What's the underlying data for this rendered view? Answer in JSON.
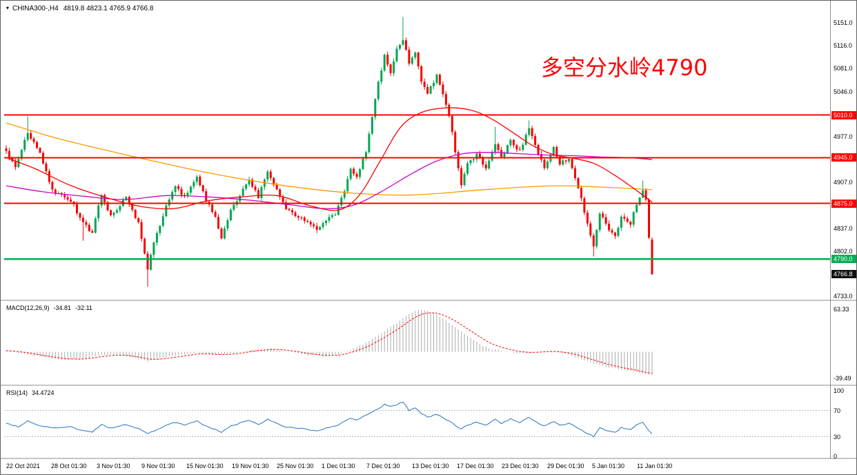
{
  "window": {
    "collapse_icon": "▾",
    "symbol_timeframe": "CHINA300-,H4",
    "ohlc_text": "4819.8 4823.1 4765.9 4766.8"
  },
  "annotation": {
    "text": "多空分水岭4790",
    "color": "#FF0000"
  },
  "colors": {
    "candle_up": "#00A651",
    "candle_down": "#F40000",
    "macd_hist": "#AAAAAA",
    "macd_signal": "#FF0000",
    "rsi_line": "#2273C4",
    "rsi_level": "#B8B8B8",
    "separator": "#8C8C8C",
    "current_badge": "#101010",
    "scale_text": "#000000"
  },
  "chart_data": {
    "type": "candlestick",
    "symbol": "CHINA300-",
    "timeframe": "H4",
    "title": "CHINA300-,H4",
    "last_ohlc": {
      "open": 4819.8,
      "high": 4823.1,
      "low": 4765.9,
      "close": 4766.8
    },
    "price_axis": {
      "range": [
        4733.0,
        5151.0
      ],
      "ticks": [
        5151.0,
        5116.0,
        5081.0,
        5046.0,
        4977.0,
        4907.0,
        4837.0,
        4802.0,
        4733.0
      ],
      "levels": [
        {
          "price": 5010.0,
          "label": "5010.0",
          "color": "#FF0000",
          "width": 2
        },
        {
          "price": 4945.0,
          "label": "4945.0",
          "color": "#FF0000",
          "width": 2
        },
        {
          "price": 4875.0,
          "label": "4875.0",
          "color": "#FF0000",
          "width": 2
        },
        {
          "price": 4790.0,
          "label": "4790.0",
          "color": "#00AE50",
          "width": 2.5
        }
      ],
      "current": {
        "price": 4766.8,
        "label": "4766.8"
      }
    },
    "time_axis": {
      "labels": [
        "22 Oct 2021",
        "28 Oct 01:30",
        "3 Nov 01:30",
        "9 Nov 01:30",
        "15 Nov 01:30",
        "19 Nov 01:30",
        "25 Nov 01:30",
        "1 Dec 01:30",
        "7 Dec 01:30",
        "13 Dec 01:30",
        "17 Dec 01:30",
        "23 Dec 01:30",
        "29 Dec 01:30",
        "5 Jan 01:30",
        "11 Jan 01:30"
      ]
    },
    "candles": {
      "count": 211,
      "close_anchors": [
        [
          0,
          4955
        ],
        [
          3,
          4930
        ],
        [
          7,
          4985
        ],
        [
          11,
          4950
        ],
        [
          15,
          4895
        ],
        [
          21,
          4880
        ],
        [
          25,
          4845
        ],
        [
          28,
          4830
        ],
        [
          31,
          4890
        ],
        [
          34,
          4855
        ],
        [
          39,
          4885
        ],
        [
          43,
          4845
        ],
        [
          46,
          4775
        ],
        [
          48,
          4815
        ],
        [
          52,
          4870
        ],
        [
          55,
          4900
        ],
        [
          58,
          4885
        ],
        [
          62,
          4915
        ],
        [
          65,
          4880
        ],
        [
          68,
          4855
        ],
        [
          70,
          4820
        ],
        [
          73,
          4865
        ],
        [
          77,
          4895
        ],
        [
          79,
          4910
        ],
        [
          82,
          4885
        ],
        [
          85,
          4925
        ],
        [
          88,
          4895
        ],
        [
          91,
          4865
        ],
        [
          95,
          4855
        ],
        [
          98,
          4845
        ],
        [
          101,
          4835
        ],
        [
          104,
          4850
        ],
        [
          107,
          4860
        ],
        [
          110,
          4895
        ],
        [
          112,
          4930
        ],
        [
          114,
          4915
        ],
        [
          117,
          4955
        ],
        [
          119,
          5005
        ],
        [
          121,
          5060
        ],
        [
          123,
          5100
        ],
        [
          125,
          5075
        ],
        [
          127,
          5110
        ],
        [
          129,
          5125
        ],
        [
          131,
          5090
        ],
        [
          133,
          5105
        ],
        [
          135,
          5060
        ],
        [
          137,
          5045
        ],
        [
          140,
          5070
        ],
        [
          142,
          5040
        ],
        [
          144,
          5010
        ],
        [
          146,
          4955
        ],
        [
          148,
          4905
        ],
        [
          150,
          4935
        ],
        [
          153,
          4950
        ],
        [
          156,
          4930
        ],
        [
          159,
          4965
        ],
        [
          161,
          4945
        ],
        [
          164,
          4970
        ],
        [
          167,
          4955
        ],
        [
          170,
          4990
        ],
        [
          173,
          4950
        ],
        [
          175,
          4930
        ],
        [
          178,
          4960
        ],
        [
          180,
          4935
        ],
        [
          183,
          4945
        ],
        [
          186,
          4900
        ],
        [
          189,
          4845
        ],
        [
          191,
          4810
        ],
        [
          193,
          4860
        ],
        [
          196,
          4835
        ],
        [
          198,
          4825
        ],
        [
          200,
          4855
        ],
        [
          203,
          4845
        ],
        [
          205,
          4875
        ],
        [
          207,
          4895
        ],
        [
          208,
          4880
        ],
        [
          209,
          4822
        ],
        [
          210,
          4766.8
        ]
      ],
      "extremes": [
        {
          "i": 7,
          "high": 5008
        },
        {
          "i": 25,
          "low": 4818
        },
        {
          "i": 46,
          "low": 4748
        },
        {
          "i": 129,
          "high": 5160
        },
        {
          "i": 159,
          "high": 4992
        },
        {
          "i": 170,
          "high": 5002
        },
        {
          "i": 191,
          "low": 4794
        },
        {
          "i": 207,
          "high": 4910
        }
      ]
    },
    "moving_averages": [
      {
        "name": "ma-slow-orange",
        "color": "#FF9900",
        "points": [
          [
            8,
            4998
          ],
          [
            80,
            4975
          ],
          [
            150,
            4957
          ],
          [
            220,
            4940
          ],
          [
            300,
            4922
          ],
          [
            380,
            4907
          ],
          [
            450,
            4897
          ],
          [
            520,
            4890
          ],
          [
            600,
            4888
          ],
          [
            700,
            4896
          ],
          [
            800,
            4902
          ],
          [
            870,
            4900
          ],
          [
            944,
            4896
          ]
        ]
      },
      {
        "name": "ma-mid-magenta",
        "color": "#CC00CC",
        "points": [
          [
            8,
            4902
          ],
          [
            60,
            4893
          ],
          [
            120,
            4886
          ],
          [
            180,
            4881
          ],
          [
            240,
            4887
          ],
          [
            300,
            4885
          ],
          [
            360,
            4880
          ],
          [
            420,
            4873
          ],
          [
            470,
            4867
          ],
          [
            510,
            4872
          ],
          [
            550,
            4892
          ],
          [
            590,
            4917
          ],
          [
            630,
            4939
          ],
          [
            670,
            4951
          ],
          [
            710,
            4953
          ],
          [
            750,
            4951
          ],
          [
            790,
            4949
          ],
          [
            830,
            4948
          ],
          [
            870,
            4946
          ],
          [
            910,
            4945
          ],
          [
            944,
            4942
          ]
        ]
      },
      {
        "name": "ma-fast-red",
        "color": "#FF0000",
        "points": [
          [
            8,
            4945
          ],
          [
            50,
            4928
          ],
          [
            100,
            4903
          ],
          [
            150,
            4885
          ],
          [
            200,
            4871
          ],
          [
            250,
            4867
          ],
          [
            300,
            4879
          ],
          [
            350,
            4885
          ],
          [
            400,
            4887
          ],
          [
            450,
            4871
          ],
          [
            490,
            4865
          ],
          [
            520,
            4888
          ],
          [
            550,
            4940
          ],
          [
            580,
            4992
          ],
          [
            610,
            5014
          ],
          [
            645,
            5021
          ],
          [
            680,
            5018
          ],
          [
            710,
            5005
          ],
          [
            740,
            4985
          ],
          [
            770,
            4964
          ],
          [
            800,
            4950
          ],
          [
            830,
            4944
          ],
          [
            860,
            4936
          ],
          [
            890,
            4918
          ],
          [
            920,
            4896
          ],
          [
            944,
            4877
          ]
        ]
      }
    ],
    "macd": {
      "label": "MACD(12,26,9)",
      "value": -34.81,
      "value_text": "-34.81",
      "signal": -32.11,
      "signal_text": "-32.11",
      "scale_max": 63.33,
      "scale_min": -39.49,
      "anchors": [
        [
          0,
          2
        ],
        [
          6,
          -3
        ],
        [
          12,
          -8
        ],
        [
          18,
          -12
        ],
        [
          24,
          -11
        ],
        [
          30,
          -5
        ],
        [
          36,
          -4
        ],
        [
          42,
          -9
        ],
        [
          46,
          -14
        ],
        [
          50,
          -10
        ],
        [
          56,
          -5
        ],
        [
          62,
          -1
        ],
        [
          68,
          -5
        ],
        [
          74,
          -2
        ],
        [
          80,
          3
        ],
        [
          86,
          5
        ],
        [
          92,
          0
        ],
        [
          98,
          -5
        ],
        [
          104,
          -7
        ],
        [
          108,
          -4
        ],
        [
          112,
          3
        ],
        [
          116,
          11
        ],
        [
          120,
          22
        ],
        [
          124,
          34
        ],
        [
          128,
          47
        ],
        [
          131,
          57
        ],
        [
          134,
          63
        ],
        [
          137,
          61
        ],
        [
          140,
          55
        ],
        [
          143,
          47
        ],
        [
          146,
          37
        ],
        [
          149,
          27
        ],
        [
          152,
          17
        ],
        [
          155,
          9
        ],
        [
          158,
          4
        ],
        [
          162,
          1
        ],
        [
          166,
          -2
        ],
        [
          170,
          -2
        ],
        [
          174,
          1
        ],
        [
          178,
          1
        ],
        [
          182,
          -3
        ],
        [
          186,
          -9
        ],
        [
          190,
          -16
        ],
        [
          194,
          -21
        ],
        [
          198,
          -25
        ],
        [
          202,
          -28
        ],
        [
          205,
          -31
        ],
        [
          208,
          -33
        ],
        [
          210,
          -34.81
        ]
      ]
    },
    "rsi": {
      "label": "RSI(14)",
      "value": 34.4724,
      "value_text": "34.4724",
      "scale_labels": [
        100,
        70,
        30,
        0
      ],
      "levels": [
        70,
        30
      ],
      "anchors": [
        [
          0,
          50
        ],
        [
          4,
          45
        ],
        [
          7,
          54
        ],
        [
          11,
          47
        ],
        [
          15,
          43
        ],
        [
          21,
          45
        ],
        [
          25,
          39
        ],
        [
          28,
          37
        ],
        [
          31,
          48
        ],
        [
          34,
          43
        ],
        [
          39,
          49
        ],
        [
          43,
          42
        ],
        [
          46,
          34
        ],
        [
          48,
          39
        ],
        [
          52,
          47
        ],
        [
          55,
          52
        ],
        [
          58,
          48
        ],
        [
          62,
          54
        ],
        [
          65,
          46
        ],
        [
          68,
          41
        ],
        [
          70,
          37
        ],
        [
          73,
          46
        ],
        [
          77,
          52
        ],
        [
          79,
          55
        ],
        [
          82,
          48
        ],
        [
          85,
          57
        ],
        [
          88,
          50
        ],
        [
          91,
          44
        ],
        [
          95,
          43
        ],
        [
          98,
          41
        ],
        [
          101,
          38
        ],
        [
          104,
          43
        ],
        [
          107,
          46
        ],
        [
          110,
          53
        ],
        [
          112,
          58
        ],
        [
          114,
          55
        ],
        [
          117,
          63
        ],
        [
          119,
          68
        ],
        [
          121,
          72
        ],
        [
          123,
          80
        ],
        [
          125,
          76
        ],
        [
          127,
          79
        ],
        [
          129,
          83
        ],
        [
          131,
          70
        ],
        [
          133,
          74
        ],
        [
          135,
          65
        ],
        [
          137,
          60
        ],
        [
          140,
          64
        ],
        [
          142,
          59
        ],
        [
          144,
          54
        ],
        [
          146,
          47
        ],
        [
          148,
          42
        ],
        [
          150,
          48
        ],
        [
          153,
          52
        ],
        [
          156,
          47
        ],
        [
          159,
          56
        ],
        [
          161,
          50
        ],
        [
          164,
          57
        ],
        [
          167,
          51
        ],
        [
          170,
          60
        ],
        [
          173,
          50
        ],
        [
          175,
          46
        ],
        [
          178,
          53
        ],
        [
          180,
          47
        ],
        [
          183,
          51
        ],
        [
          186,
          42
        ],
        [
          189,
          35
        ],
        [
          191,
          30
        ],
        [
          193,
          43
        ],
        [
          196,
          38
        ],
        [
          198,
          36
        ],
        [
          200,
          44
        ],
        [
          203,
          41
        ],
        [
          205,
          48
        ],
        [
          207,
          52
        ],
        [
          208,
          46
        ],
        [
          209,
          39
        ],
        [
          210,
          34.47
        ]
      ]
    }
  }
}
